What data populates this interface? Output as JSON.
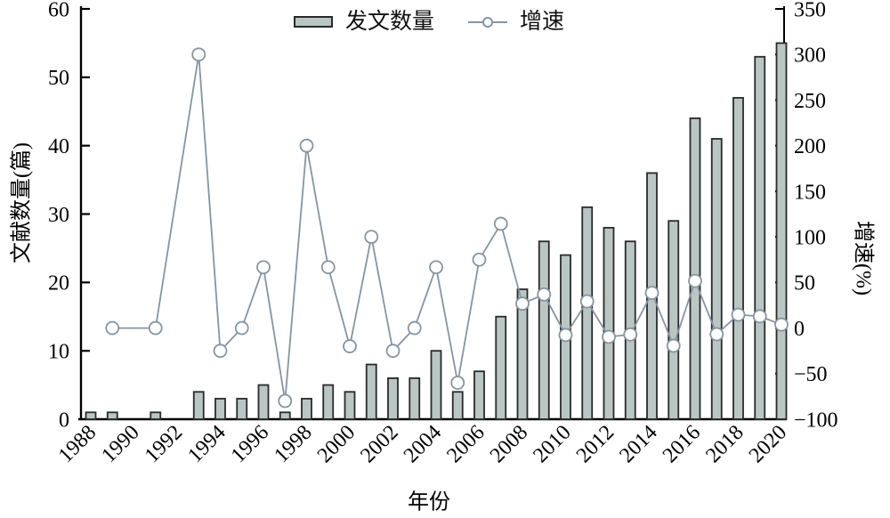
{
  "chart_data": {
    "type": "bar",
    "title": "",
    "xlabel": "年份",
    "ylabel_left": "文献数量(篇)",
    "ylabel_right": "增速(%)",
    "legend": {
      "bars": "发文数量",
      "line": "增速"
    },
    "x_tick_labels": [
      "1988",
      "1990",
      "1992",
      "1994",
      "1996",
      "1998",
      "2000",
      "2002",
      "2004",
      "2006",
      "2008",
      "2010",
      "2012",
      "2014",
      "2016",
      "2018",
      "2020"
    ],
    "y_ticks_left": [
      0,
      10,
      20,
      30,
      40,
      50,
      60
    ],
    "ylim_left": [
      0,
      60
    ],
    "y_ticks_right": [
      -100,
      -50,
      0,
      50,
      100,
      150,
      200,
      250,
      300,
      350
    ],
    "ylim_right": [
      -100,
      350
    ],
    "grid": "off",
    "legend_position": "top-center",
    "categories": [
      1988,
      1989,
      1990,
      1991,
      1992,
      1993,
      1994,
      1995,
      1996,
      1997,
      1998,
      1999,
      2000,
      2001,
      2002,
      2003,
      2004,
      2005,
      2006,
      2007,
      2008,
      2009,
      2010,
      2011,
      2012,
      2013,
      2014,
      2015,
      2016,
      2017,
      2018,
      2019,
      2020
    ],
    "series": [
      {
        "name": "发文数量",
        "type": "bar",
        "axis": "left",
        "values": [
          1,
          1,
          0,
          1,
          0,
          4,
          3,
          3,
          5,
          1,
          3,
          5,
          4,
          8,
          6,
          6,
          10,
          4,
          7,
          15,
          19,
          26,
          24,
          31,
          28,
          26,
          36,
          29,
          44,
          41,
          47,
          53,
          55
        ]
      },
      {
        "name": "增速",
        "type": "line",
        "axis": "right",
        "points": [
          [
            1989,
            0
          ],
          [
            1991,
            0
          ],
          [
            1993,
            300
          ],
          [
            1994,
            -25
          ],
          [
            1995,
            0
          ],
          [
            1996,
            66.7
          ],
          [
            1997,
            -80
          ],
          [
            1998,
            200
          ],
          [
            1999,
            66.7
          ],
          [
            2000,
            -20
          ],
          [
            2001,
            100
          ],
          [
            2002,
            -25
          ],
          [
            2003,
            0
          ],
          [
            2004,
            66.7
          ],
          [
            2005,
            -60
          ],
          [
            2006,
            75
          ],
          [
            2007,
            114.3
          ],
          [
            2008,
            26.7
          ],
          [
            2009,
            36.8
          ],
          [
            2010,
            -7.7
          ],
          [
            2011,
            29.2
          ],
          [
            2012,
            -9.7
          ],
          [
            2013,
            -7.1
          ],
          [
            2014,
            38.5
          ],
          [
            2015,
            -19.4
          ],
          [
            2016,
            51.7
          ],
          [
            2017,
            -6.8
          ],
          [
            2018,
            14.6
          ],
          [
            2019,
            12.8
          ],
          [
            2020,
            3.8
          ]
        ]
      }
    ],
    "colors": {
      "bar_fill": "#b9c6c4",
      "bar_stroke": "#2a2a2a",
      "line": "#8695a1",
      "marker_fill": "#ffffff",
      "axis": "#000000"
    }
  }
}
